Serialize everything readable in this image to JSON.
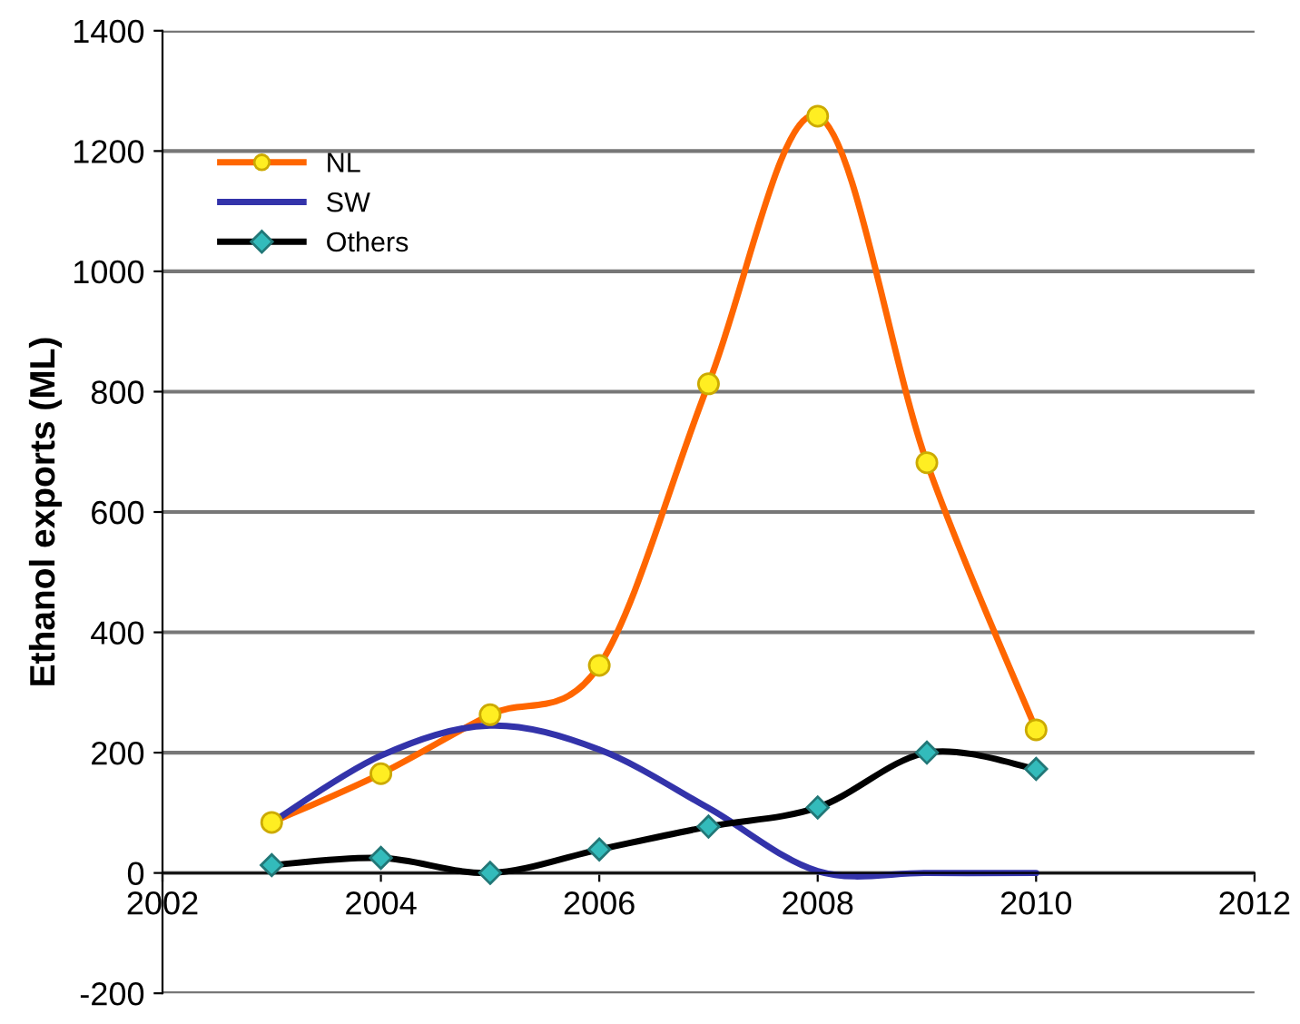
{
  "chart_data": {
    "type": "line",
    "ylabel": "Ethanol exports (ML)",
    "x": [
      2003,
      2004,
      2005,
      2006,
      2007,
      2008,
      2009,
      2010
    ],
    "series": [
      {
        "name": "NL",
        "color": "#ff6600",
        "marker": "circle",
        "values": [
          84,
          165,
          263,
          345,
          813,
          1258,
          682,
          238
        ]
      },
      {
        "name": "SW",
        "color": "#3333aa",
        "marker": "none",
        "values": [
          84,
          195,
          245,
          205,
          108,
          3,
          0,
          0
        ]
      },
      {
        "name": "Others",
        "color": "#000000",
        "marker": "diamond",
        "values": [
          13,
          25,
          0,
          39,
          77,
          109,
          200,
          173
        ]
      }
    ],
    "xlim": [
      2002,
      2012
    ],
    "xticks": [
      2002,
      2004,
      2006,
      2008,
      2010,
      2012
    ],
    "ylim": [
      -200,
      1400
    ],
    "yticks": [
      -200,
      0,
      200,
      400,
      600,
      800,
      1000,
      1200,
      1400
    ],
    "grid": "y",
    "legend": "top left"
  }
}
